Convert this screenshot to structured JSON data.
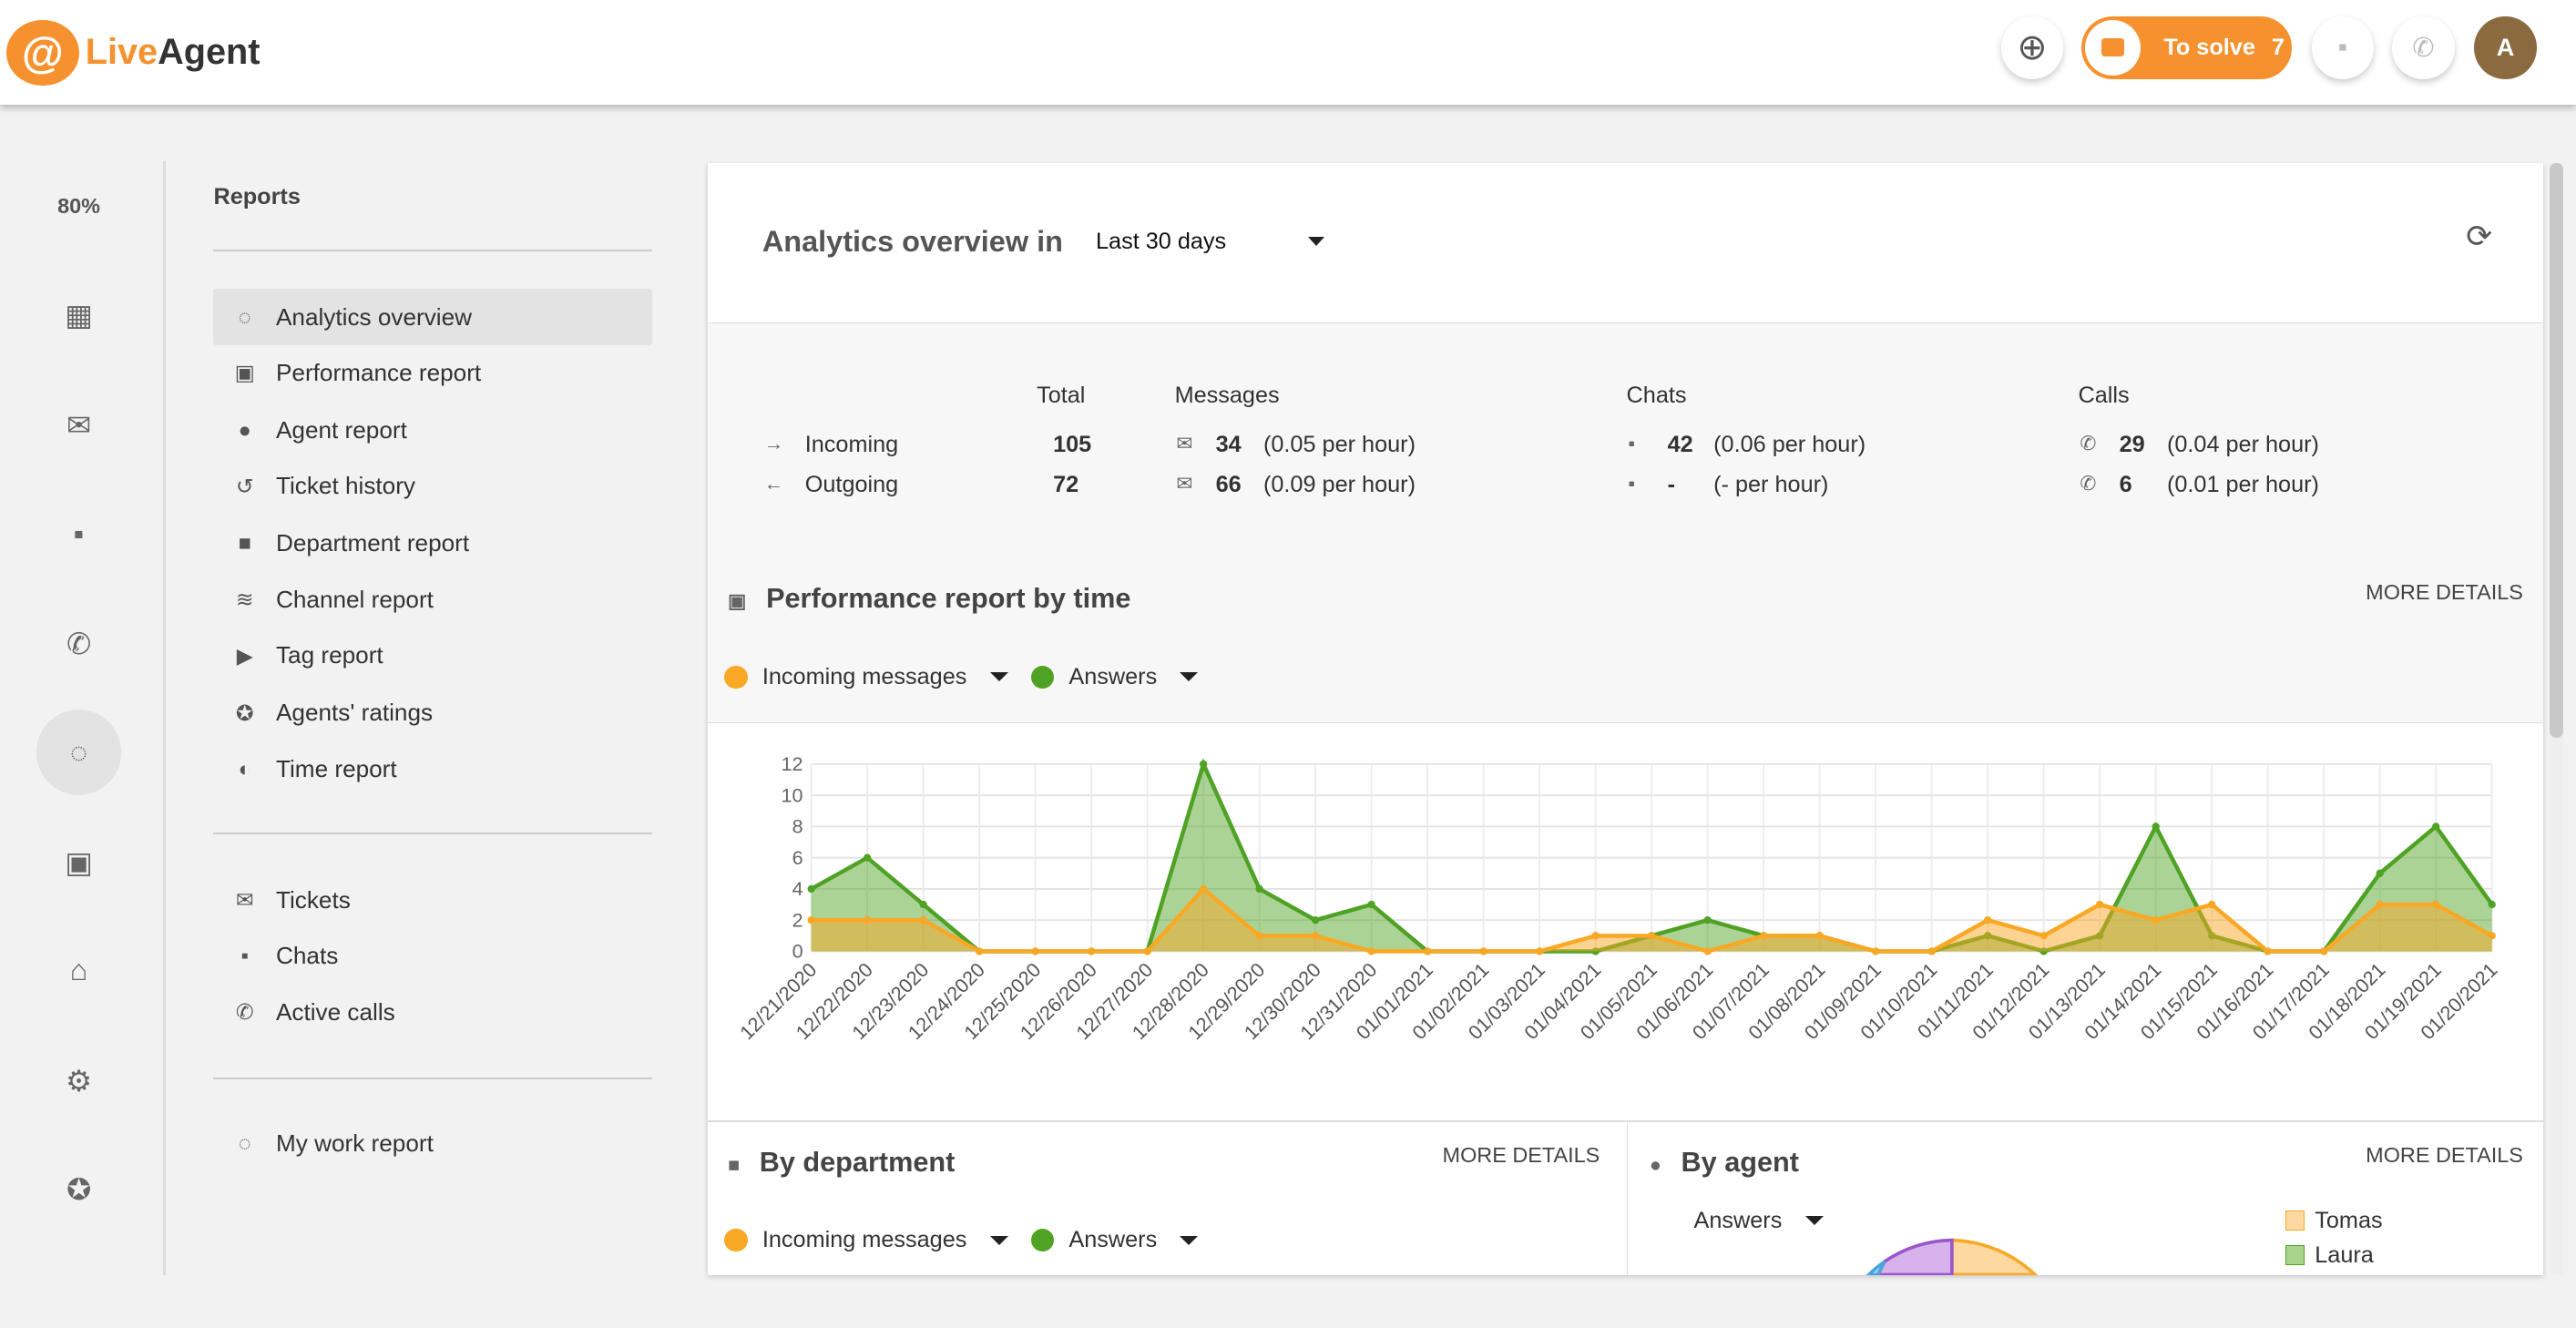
{
  "header": {
    "logo_mark": "@",
    "logo_live": "Live",
    "logo_agent": "Agent",
    "to_solve_label": "To solve",
    "to_solve_count": "7",
    "avatar_initial": "A"
  },
  "rail": {
    "percent": "80%",
    "items": [
      "dashboard",
      "email",
      "chat",
      "phone",
      "reports",
      "contacts",
      "company",
      "settings",
      "star"
    ]
  },
  "sidebar": {
    "title": "Reports",
    "groups": [
      [
        {
          "label": "Analytics overview",
          "icon": "donut-icon",
          "active": true
        },
        {
          "label": "Performance report",
          "icon": "chip-icon"
        },
        {
          "label": "Agent report",
          "icon": "person-icon"
        },
        {
          "label": "Ticket history",
          "icon": "history-icon"
        },
        {
          "label": "Department report",
          "icon": "folder-icon"
        },
        {
          "label": "Channel report",
          "icon": "rss-icon"
        },
        {
          "label": "Tag report",
          "icon": "tag-icon"
        },
        {
          "label": "Agents' ratings",
          "icon": "star-icon"
        },
        {
          "label": "Time report",
          "icon": "clock-icon"
        }
      ],
      [
        {
          "label": "Tickets",
          "icon": "email-icon"
        },
        {
          "label": "Chats",
          "icon": "chat-icon"
        },
        {
          "label": "Active calls",
          "icon": "phone-icon"
        }
      ],
      [
        {
          "label": "My work report",
          "icon": "donut-icon"
        }
      ]
    ]
  },
  "overview": {
    "title": "Analytics overview in",
    "period": "Last 30 days"
  },
  "stats": {
    "headers": {
      "total": "Total",
      "messages": "Messages",
      "chats": "Chats",
      "calls": "Calls"
    },
    "rows": [
      {
        "label": "Incoming",
        "total": "105",
        "messages": "34",
        "messages_rate": "(0.05 per hour)",
        "chats": "42",
        "chats_rate": "(0.06 per hour)",
        "calls": "29",
        "calls_rate": "(0.04 per hour)"
      },
      {
        "label": "Outgoing",
        "total": "72",
        "messages": "66",
        "messages_rate": "(0.09 per hour)",
        "chats": "-",
        "chats_rate": "(- per hour)",
        "calls": "6",
        "calls_rate": "(0.01 per hour)"
      }
    ]
  },
  "performance": {
    "title": "Performance report by time",
    "more": "MORE DETAILS",
    "legend": [
      "Incoming messages",
      "Answers"
    ]
  },
  "department": {
    "title": "By department",
    "more": "MORE DETAILS",
    "legend": [
      "Incoming messages",
      "Answers"
    ]
  },
  "agent": {
    "title": "By agent",
    "more": "MORE DETAILS",
    "select": "Answers",
    "legend": [
      "Tomas",
      "Laura"
    ]
  },
  "colors": {
    "accent": "#f5922f",
    "incoming": "#f9a825",
    "answers": "#4fa224"
  },
  "chart_data": {
    "type": "area",
    "x": [
      "12/21/2020",
      "12/22/2020",
      "12/23/2020",
      "12/24/2020",
      "12/25/2020",
      "12/26/2020",
      "12/27/2020",
      "12/28/2020",
      "12/29/2020",
      "12/30/2020",
      "12/31/2020",
      "01/01/2021",
      "01/02/2021",
      "01/03/2021",
      "01/04/2021",
      "01/05/2021",
      "01/06/2021",
      "01/07/2021",
      "01/08/2021",
      "01/09/2021",
      "01/10/2021",
      "01/11/2021",
      "01/12/2021",
      "01/13/2021",
      "01/14/2021",
      "01/15/2021",
      "01/16/2021",
      "01/17/2021",
      "01/18/2021",
      "01/19/2021",
      "01/20/2021"
    ],
    "ylim": [
      0,
      12
    ],
    "yticks": [
      "0",
      "2",
      "4",
      "6",
      "8",
      "10",
      "12"
    ],
    "grid": true,
    "series": [
      {
        "name": "Answers",
        "values": [
          4,
          6,
          3,
          0,
          0,
          0,
          0,
          12,
          4,
          2,
          3,
          0,
          0,
          0,
          0,
          1,
          2,
          1,
          1,
          0,
          0,
          1,
          0,
          1,
          8,
          1,
          0,
          0,
          5,
          8,
          3
        ]
      },
      {
        "name": "Incoming messages",
        "values": [
          2,
          2,
          2,
          0,
          0,
          0,
          0,
          4,
          1,
          1,
          0,
          0,
          0,
          0,
          1,
          1,
          0,
          1,
          1,
          0,
          0,
          2,
          1,
          3,
          2,
          3,
          0,
          0,
          3,
          3,
          1
        ]
      }
    ]
  }
}
